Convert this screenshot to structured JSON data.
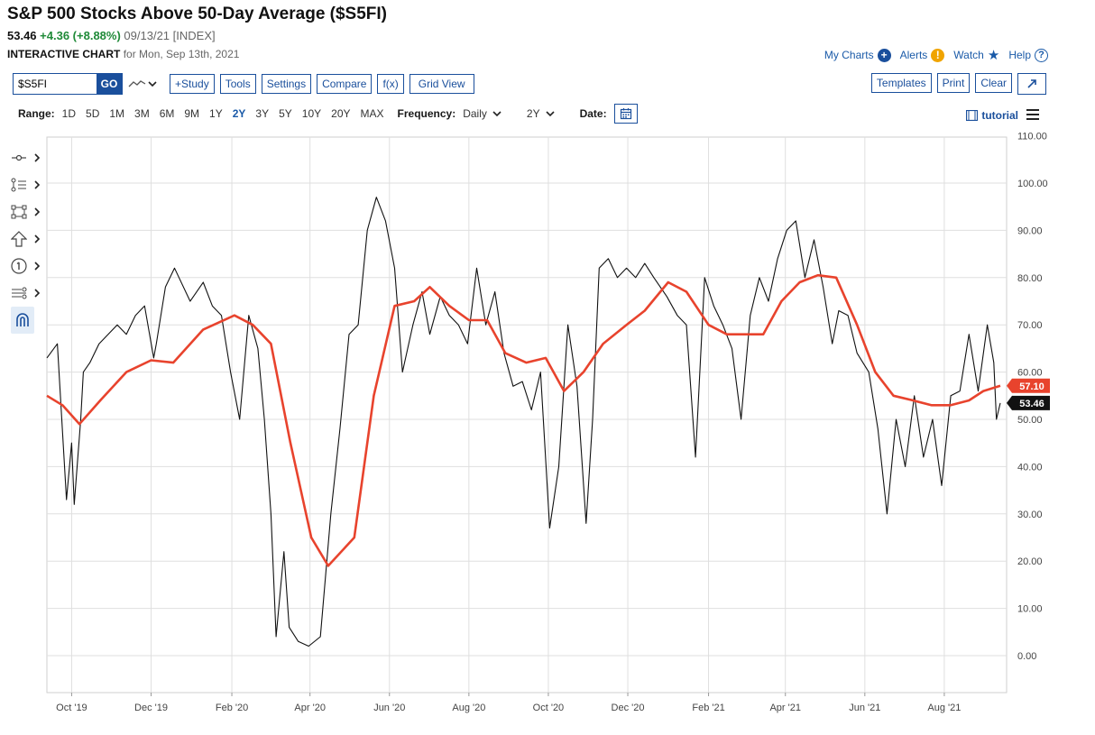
{
  "header": {
    "title": "S&P 500 Stocks Above 50-Day Average ($S5FI)",
    "last": "53.46",
    "change": "+4.36 (+8.88%)",
    "date": "09/13/21",
    "exchange": "[INDEX]",
    "chart_label": "INTERACTIVE CHART",
    "chart_for": "for Mon, Sep 13th, 2021"
  },
  "topnav": {
    "my_charts": "My Charts",
    "alerts": "Alerts",
    "watch": "Watch",
    "help": "Help"
  },
  "toolbar": {
    "symbol_value": "$S5FI",
    "go": "GO",
    "study": "+Study",
    "tools": "Tools",
    "settings": "Settings",
    "compare": "Compare",
    "fx": "f(x)",
    "grid_view": "Grid View",
    "templates": "Templates",
    "print": "Print",
    "clear": "Clear"
  },
  "range": {
    "label": "Range:",
    "options": [
      "1D",
      "5D",
      "1M",
      "3M",
      "6M",
      "9M",
      "1Y",
      "2Y",
      "3Y",
      "5Y",
      "10Y",
      "20Y",
      "MAX"
    ],
    "active": "2Y",
    "frequency_label": "Frequency:",
    "frequency_value": "Daily",
    "period_value": "2Y",
    "date_label": "Date:",
    "tutorial": "tutorial"
  },
  "icons": {
    "left_tools": [
      "crosshair-icon",
      "annotation-icon",
      "shape-icon",
      "arrow-icon",
      "numbered-marker-icon",
      "lines-icon",
      "magnet-icon"
    ]
  },
  "colors": {
    "price_line": "#111111",
    "ma_line": "#e8432d",
    "accent": "#1a4f9c",
    "change_positive": "#1f8a38",
    "grid": "#dfdfdf"
  },
  "chart_data": {
    "type": "line",
    "ylim": [
      0,
      110
    ],
    "y_ticks": [
      "0.00",
      "10.00",
      "20.00",
      "30.00",
      "40.00",
      "50.00",
      "60.00",
      "70.00",
      "80.00",
      "90.00",
      "100.00",
      "110.00"
    ],
    "x_ticks": [
      "Oct '19",
      "Dec '19",
      "Feb '20",
      "Apr '20",
      "Jun '20",
      "Aug '20",
      "Oct '20",
      "Dec '20",
      "Feb '21",
      "Apr '21",
      "Jun '21",
      "Aug '21"
    ],
    "x_range": [
      "2019-09-12",
      "2021-09-13"
    ],
    "last_values": {
      "price": "53.46",
      "ma": "57.10"
    },
    "grid": true,
    "series": [
      {
        "key": "price",
        "x": [
          "2019-09-12",
          "2019-09-20",
          "2019-09-27",
          "2019-10-01",
          "2019-10-03",
          "2019-10-08",
          "2019-10-10",
          "2019-10-15",
          "2019-10-22",
          "2019-10-29",
          "2019-11-05",
          "2019-11-12",
          "2019-11-19",
          "2019-11-26",
          "2019-12-03",
          "2019-12-05",
          "2019-12-12",
          "2019-12-19",
          "2019-12-31",
          "2020-01-10",
          "2020-01-17",
          "2020-01-24",
          "2020-01-31",
          "2020-02-07",
          "2020-02-14",
          "2020-02-21",
          "2020-02-26",
          "2020-03-02",
          "2020-03-06",
          "2020-03-12",
          "2020-03-16",
          "2020-03-23",
          "2020-03-31",
          "2020-04-09",
          "2020-04-17",
          "2020-04-24",
          "2020-05-01",
          "2020-05-08",
          "2020-05-15",
          "2020-05-22",
          "2020-05-29",
          "2020-06-05",
          "2020-06-11",
          "2020-06-19",
          "2020-06-26",
          "2020-07-02",
          "2020-07-10",
          "2020-07-17",
          "2020-07-24",
          "2020-07-31",
          "2020-08-07",
          "2020-08-14",
          "2020-08-21",
          "2020-08-28",
          "2020-09-04",
          "2020-09-11",
          "2020-09-18",
          "2020-09-25",
          "2020-10-02",
          "2020-10-09",
          "2020-10-16",
          "2020-10-23",
          "2020-10-30",
          "2020-11-04",
          "2020-11-09",
          "2020-11-16",
          "2020-11-23",
          "2020-11-30",
          "2020-12-07",
          "2020-12-14",
          "2020-12-21",
          "2020-12-31",
          "2021-01-08",
          "2021-01-15",
          "2021-01-22",
          "2021-01-29",
          "2021-02-05",
          "2021-02-12",
          "2021-02-19",
          "2021-02-26",
          "2021-03-05",
          "2021-03-12",
          "2021-03-19",
          "2021-03-26",
          "2021-04-02",
          "2021-04-09",
          "2021-04-16",
          "2021-04-23",
          "2021-04-30",
          "2021-05-07",
          "2021-05-12",
          "2021-05-19",
          "2021-05-26",
          "2021-06-04",
          "2021-06-11",
          "2021-06-18",
          "2021-06-25",
          "2021-07-02",
          "2021-07-09",
          "2021-07-16",
          "2021-07-23",
          "2021-07-30",
          "2021-08-06",
          "2021-08-13",
          "2021-08-20",
          "2021-08-27",
          "2021-09-03",
          "2021-09-08",
          "2021-09-10",
          "2021-09-13"
        ],
        "values": [
          63,
          66,
          33,
          45,
          32,
          50,
          60,
          62,
          66,
          68,
          70,
          68,
          72,
          74,
          63,
          66,
          78,
          82,
          75,
          79,
          74,
          72,
          60,
          50,
          72,
          65,
          50,
          30,
          4,
          22,
          6,
          3,
          2,
          4,
          30,
          48,
          68,
          70,
          90,
          97,
          92,
          82,
          60,
          70,
          77,
          68,
          76,
          72,
          70,
          66,
          82,
          70,
          77,
          64,
          57,
          58,
          52,
          60,
          27,
          40,
          70,
          57,
          28,
          50,
          82,
          84,
          80,
          82,
          80,
          83,
          80,
          76,
          72,
          70,
          42,
          80,
          74,
          70,
          65,
          50,
          72,
          80,
          75,
          84,
          90,
          92,
          80,
          88,
          78,
          66,
          73,
          72,
          64,
          60,
          48,
          30,
          50,
          40,
          55,
          42,
          50,
          36,
          55,
          56,
          68,
          56,
          70,
          62,
          50,
          53.46
        ]
      },
      {
        "key": "ma",
        "x": [
          "2019-09-12",
          "2019-09-24",
          "2019-10-07",
          "2019-10-23",
          "2019-11-12",
          "2019-12-01",
          "2019-12-18",
          "2020-01-10",
          "2020-02-03",
          "2020-02-17",
          "2020-03-02",
          "2020-03-17",
          "2020-04-02",
          "2020-04-15",
          "2020-05-05",
          "2020-05-20",
          "2020-06-05",
          "2020-06-20",
          "2020-07-02",
          "2020-07-17",
          "2020-08-01",
          "2020-08-15",
          "2020-08-29",
          "2020-09-14",
          "2020-09-29",
          "2020-10-13",
          "2020-10-28",
          "2020-11-12",
          "2020-11-30",
          "2020-12-14",
          "2021-01-01",
          "2021-01-15",
          "2021-02-01",
          "2021-02-15",
          "2021-03-01",
          "2021-03-15",
          "2021-03-29",
          "2021-04-12",
          "2021-04-26",
          "2021-05-10",
          "2021-05-26",
          "2021-06-09",
          "2021-06-23",
          "2021-07-08",
          "2021-07-22",
          "2021-08-06",
          "2021-08-20",
          "2021-08-31",
          "2021-09-13"
        ],
        "values": [
          55,
          53,
          49,
          54,
          60,
          62.5,
          62,
          69,
          72,
          70,
          66,
          45,
          25,
          19,
          25,
          55,
          74,
          75,
          78,
          74,
          71,
          71,
          64,
          62,
          63,
          56,
          60,
          66,
          70,
          73,
          79,
          77,
          70,
          68,
          68,
          68,
          75,
          79,
          80.5,
          80,
          70,
          60,
          55,
          54,
          53,
          53,
          54,
          56,
          57.1
        ]
      }
    ]
  }
}
